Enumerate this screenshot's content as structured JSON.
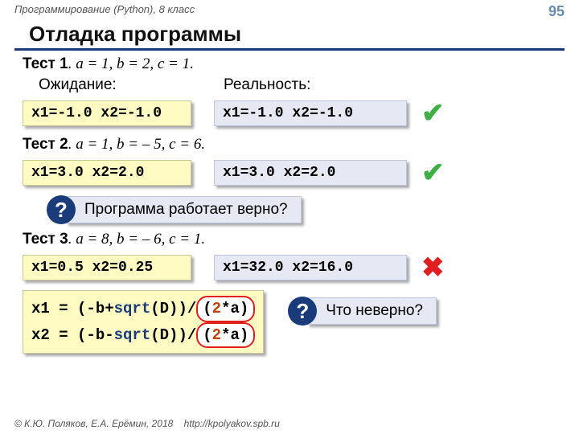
{
  "header": {
    "course": "Программирование (Python), 8 класс",
    "page_number": "95"
  },
  "title": "Отладка программы",
  "labels": {
    "expect": "Ожидание:",
    "reality": "Реальность:"
  },
  "tests": [
    {
      "name": "Тест 1",
      "params": ". a = 1, b = 2, c = 1.",
      "expect": "x1=-1.0 x2=-1.0",
      "got": "x1=-1.0 x2=-1.0",
      "ok": true
    },
    {
      "name": "Тест 2",
      "params": ". a = 1, b =  – 5, c = 6.",
      "expect": "x1=3.0 x2=2.0",
      "got": "x1=3.0 x2=2.0",
      "ok": true
    },
    {
      "name": "Тест 3",
      "params": ". a = 8, b =  – 6, c = 1.",
      "expect": "x1=0.5 x2=0.25",
      "got": "x1=32.0 x2=16.0",
      "ok": false
    }
  ],
  "callout1": "Программа работает верно?",
  "callout2": "Что неверно?",
  "q_mark": "?",
  "code": {
    "line1_pre": "x1 = (-b+",
    "line2_pre": "x2 = (-b-",
    "sqrt": "sqrt",
    "mid": "(D))/",
    "pill_num": "2",
    "pill_rest": "*a",
    "pill_open": "(",
    "pill_close": ")"
  },
  "marks": {
    "check": "✔",
    "cross": "✖"
  },
  "colors": {
    "yellow_bg": "#fffbc2",
    "blue_bg": "#e6e9f4",
    "accent": "#1a3b7a",
    "green": "#3cb043",
    "red": "#e02020",
    "pill_num": "#c04000"
  },
  "footer": {
    "copyright": "© К.Ю. Поляков, Е.А. Ерёмин, 2018",
    "url": "http://kpolyakov.spb.ru"
  }
}
